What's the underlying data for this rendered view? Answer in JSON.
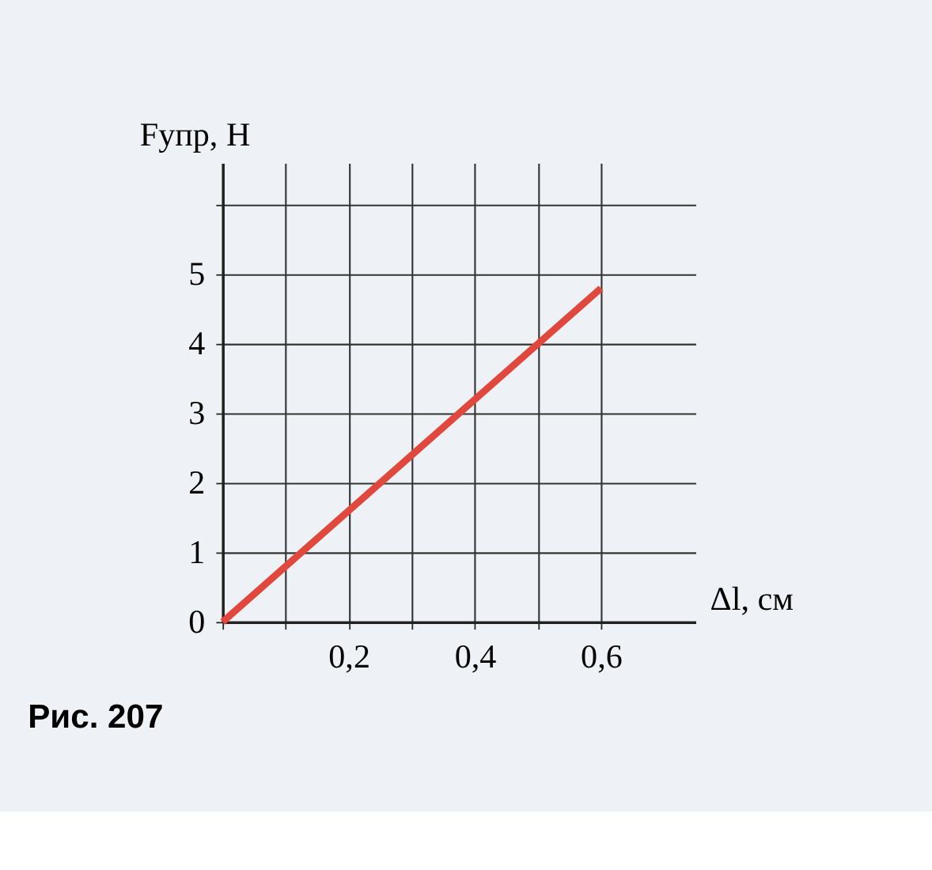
{
  "chart_data": {
    "type": "line",
    "x": [
      0,
      0.6
    ],
    "series": [
      {
        "color": "#e0483e",
        "values": [
          0,
          4.8
        ]
      }
    ],
    "xlabel": "Δl, см",
    "ylabel": "Fупр, Н",
    "xlim": [
      0,
      0.75
    ],
    "ylim": [
      0,
      6.6
    ],
    "xticks": [
      {
        "value": 0,
        "label": null
      },
      {
        "value": 0.1,
        "label": null
      },
      {
        "value": 0.2,
        "label": "0,2"
      },
      {
        "value": 0.3,
        "label": null
      },
      {
        "value": 0.4,
        "label": "0,4"
      },
      {
        "value": 0.5,
        "label": null
      },
      {
        "value": 0.6,
        "label": "0,6"
      }
    ],
    "yticks": [
      0,
      1,
      2,
      3,
      4,
      5,
      {
        "value": 6,
        "label": null
      }
    ],
    "grid": true,
    "marker": "none",
    "line_style": "solid",
    "annotations": [
      "Рис. 207"
    ]
  }
}
